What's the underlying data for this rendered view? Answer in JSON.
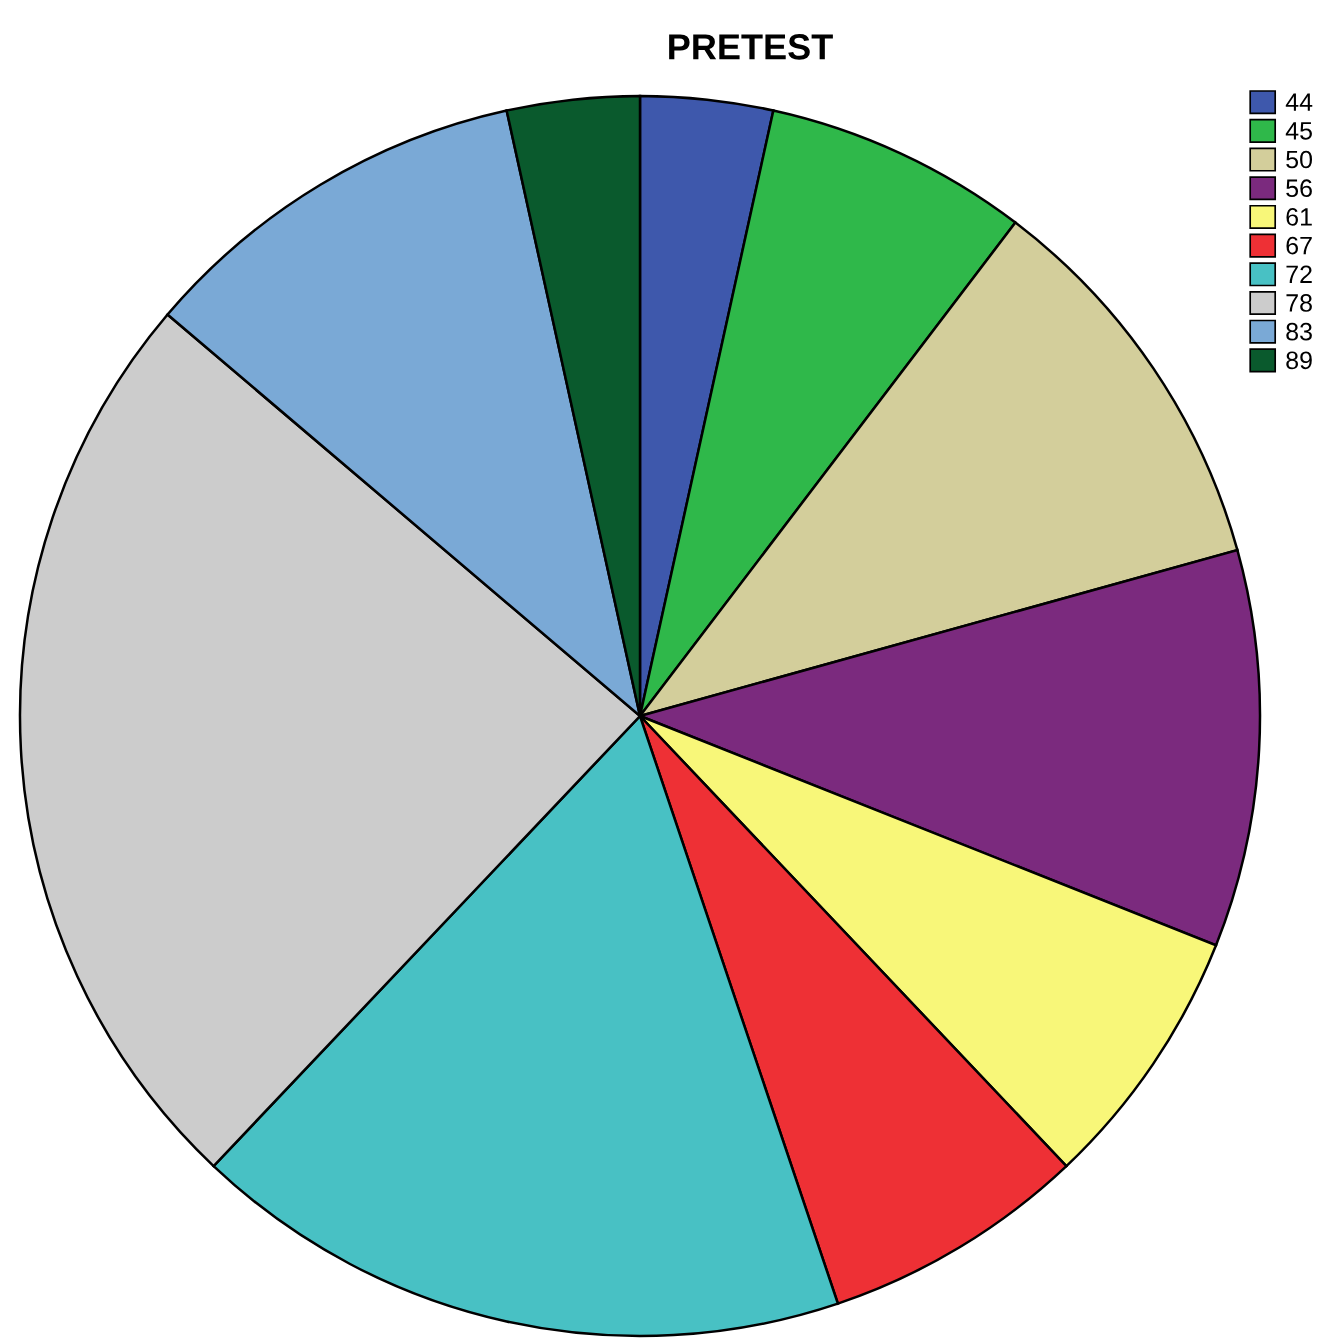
{
  "chart_data": {
    "type": "pie",
    "title": "PRETEST",
    "categories": [
      "44",
      "45",
      "50",
      "56",
      "61",
      "67",
      "72",
      "78",
      "83",
      "89"
    ],
    "values": [
      3.45,
      6.9,
      10.34,
      10.34,
      6.9,
      6.9,
      17.24,
      24.14,
      10.34,
      3.45
    ],
    "colors": [
      "#3e58ac",
      "#2fb84a",
      "#d3ce9b",
      "#7b2a7e",
      "#f8f779",
      "#ee3035",
      "#48c1c4",
      "#cccccc",
      "#7aa9d6",
      "#0a5a2d"
    ],
    "legend": "top right"
  }
}
